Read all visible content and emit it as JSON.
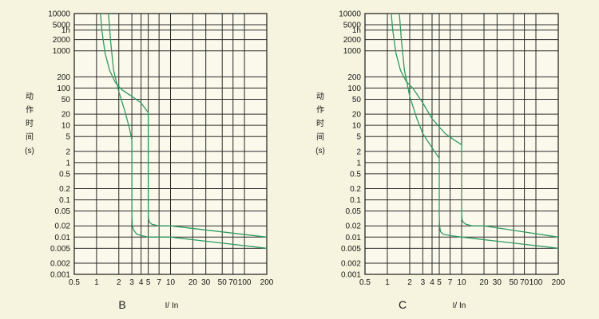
{
  "chart_data": [
    {
      "type": "line",
      "panel_label": "B",
      "xlabel": "I/ In",
      "ylabel": [
        "动",
        "作",
        "时",
        "间",
        "(s)"
      ],
      "x_scale": "log",
      "y_scale": "log",
      "xlim": [
        0.5,
        200
      ],
      "ylim": [
        0.001,
        10000
      ],
      "x_ticks": [
        0.5,
        1,
        2,
        3,
        4,
        5,
        7,
        10,
        20,
        30,
        50,
        70,
        100,
        200
      ],
      "x_tick_labels": [
        "0.5",
        "1",
        "2",
        "3",
        "4",
        "5",
        "7",
        "10",
        "20",
        "30",
        "50",
        "70",
        "100",
        "200"
      ],
      "y_ticks": [
        0.001,
        0.002,
        0.005,
        0.01,
        0.02,
        0.05,
        0.1,
        0.2,
        0.5,
        1,
        2,
        5,
        10,
        20,
        50,
        100,
        200,
        1000,
        2000,
        3600,
        5000,
        10000
      ],
      "y_tick_labels": [
        "0.001",
        "0.002",
        "0.005",
        "0.01",
        "0.02",
        "0.05",
        "0.1",
        "0.2",
        "0.5",
        "1",
        "2",
        "5",
        "10",
        "20",
        "50",
        "100",
        "200",
        "1000",
        "2000",
        "1h",
        "5000",
        "10000"
      ],
      "grid": true,
      "series": [
        {
          "x": [
            1.13,
            1.18,
            1.3,
            1.5,
            1.8,
            2.2,
            3.0,
            4.0,
            5.0,
            5.0,
            5.05,
            5.2,
            5.6,
            7.0,
            10,
            200
          ],
          "y": [
            10000,
            3600,
            900,
            300,
            140,
            90,
            60,
            40,
            22,
            0.05,
            0.03,
            0.025,
            0.022,
            0.02,
            0.02,
            0.01
          ]
        },
        {
          "x": [
            1.45,
            1.55,
            1.7,
            2.0,
            2.4,
            2.8,
            3.0,
            3.0,
            3.05,
            3.2,
            3.5,
            4.0,
            5.0,
            10,
            200
          ],
          "y": [
            10000,
            1800,
            300,
            80,
            25,
            8,
            4,
            0.04,
            0.02,
            0.015,
            0.012,
            0.011,
            0.01,
            0.01,
            0.005
          ]
        }
      ]
    },
    {
      "type": "line",
      "panel_label": "C",
      "xlabel": "I/ In",
      "ylabel": [
        "动",
        "作",
        "时",
        "间",
        "(s)"
      ],
      "x_scale": "log",
      "y_scale": "log",
      "xlim": [
        0.5,
        200
      ],
      "ylim": [
        0.001,
        10000
      ],
      "x_ticks": [
        0.5,
        1,
        2,
        3,
        4,
        5,
        7,
        10,
        20,
        30,
        50,
        70,
        100,
        200
      ],
      "x_tick_labels": [
        "0.5",
        "1",
        "2",
        "3",
        "4",
        "5",
        "7",
        "10",
        "20",
        "30",
        "50",
        "70",
        "100",
        "200"
      ],
      "y_ticks": [
        0.001,
        0.002,
        0.005,
        0.01,
        0.02,
        0.05,
        0.1,
        0.2,
        0.5,
        1,
        2,
        5,
        10,
        20,
        50,
        100,
        200,
        1000,
        2000,
        3600,
        5000,
        10000
      ],
      "y_tick_labels": [
        "0.001",
        "0.002",
        "0.005",
        "0.01",
        "0.02",
        "0.05",
        "0.1",
        "0.2",
        "0.5",
        "1",
        "2",
        "5",
        "10",
        "20",
        "50",
        "100",
        "200",
        "1000",
        "2000",
        "1h",
        "5000",
        "10000"
      ],
      "grid": true,
      "series": [
        {
          "x": [
            1.13,
            1.18,
            1.3,
            1.5,
            1.8,
            2.2,
            3.0,
            4.0,
            6.0,
            8.0,
            10,
            10,
            10.1,
            10.5,
            11.5,
            14,
            20,
            200
          ],
          "y": [
            10000,
            3600,
            900,
            300,
            150,
            100,
            40,
            15,
            6,
            4,
            3,
            0.05,
            0.03,
            0.025,
            0.022,
            0.02,
            0.02,
            0.01
          ]
        },
        {
          "x": [
            1.45,
            1.55,
            1.7,
            2.0,
            2.5,
            3.0,
            4.0,
            5.0,
            5.0,
            5.05,
            5.2,
            5.6,
            7.0,
            10,
            200
          ],
          "y": [
            10000,
            1800,
            300,
            60,
            15,
            6,
            2.5,
            1.3,
            0.04,
            0.02,
            0.014,
            0.012,
            0.011,
            0.01,
            0.005
          ]
        }
      ]
    }
  ]
}
